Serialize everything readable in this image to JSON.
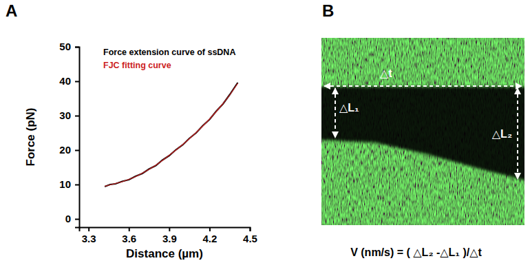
{
  "chart_data": {
    "type": "line",
    "annotations": [
      "A"
    ],
    "x_label": "Distance (µm)",
    "y_label": "Force (pN)",
    "x": [
      3.42,
      3.46,
      3.5,
      3.55,
      3.6,
      3.65,
      3.7,
      3.75,
      3.8,
      3.85,
      3.9,
      3.95,
      4.0,
      4.05,
      4.1,
      4.15,
      4.2,
      4.25,
      4.3,
      4.35,
      4.41
    ],
    "series": [
      {
        "name": "Force extension curve of ssDNA",
        "color": "#000000",
        "values": [
          9.4,
          10.0,
          10.2,
          10.9,
          11.4,
          12.4,
          13.2,
          14.5,
          15.5,
          17.1,
          18.4,
          20.1,
          21.5,
          23.4,
          25.0,
          27.1,
          28.9,
          31.3,
          33.4,
          36.1,
          39.6
        ]
      },
      {
        "name": "FJC fitting curve",
        "color": "#cc2222",
        "values": [
          9.5,
          9.9,
          10.3,
          10.8,
          11.5,
          12.3,
          13.3,
          14.4,
          15.6,
          17.0,
          18.5,
          20.0,
          21.6,
          23.3,
          25.1,
          27.0,
          29.0,
          31.2,
          33.5,
          36.0,
          39.4
        ]
      }
    ],
    "xlim": [
      3.23,
      4.5
    ],
    "xticks": [
      3.3,
      3.6,
      3.9,
      4.2,
      4.5
    ],
    "ylim": [
      -2.4,
      50
    ],
    "yticks": [
      0,
      10,
      20,
      30,
      40,
      50
    ],
    "legend": "upper left",
    "grid": false
  },
  "kymograph": {
    "panel_label": "B",
    "delta_t": "△t",
    "delta_l1": "△L₁",
    "delta_l2": "△L₂",
    "formula": "V (nm/s) = ( △L₂ -△L₁ )/△t"
  }
}
